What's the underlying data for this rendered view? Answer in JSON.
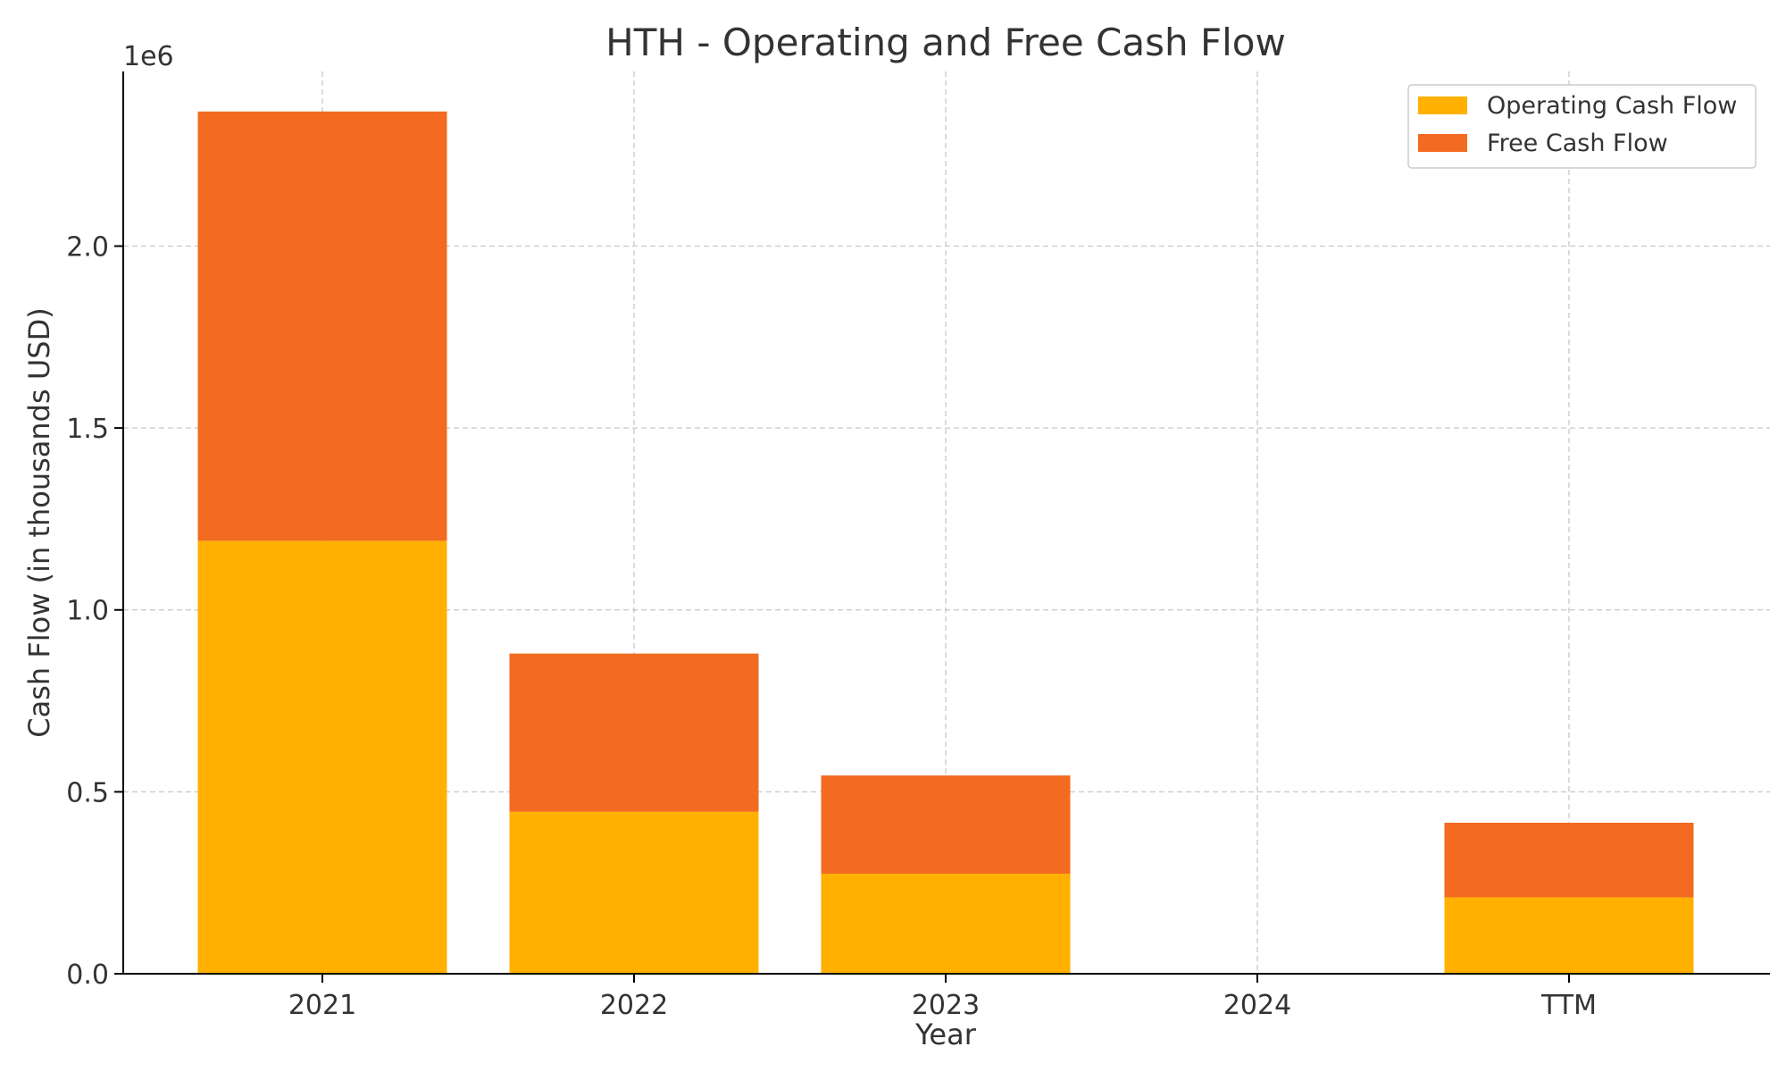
{
  "chart_data": {
    "type": "bar",
    "stacked": true,
    "title": "HTH - Operating and Free Cash Flow",
    "xlabel": "Year",
    "ylabel": "Cash Flow (in thousands USD)",
    "y_offset_label": "1e6",
    "y_scale": 1000000,
    "categories": [
      "2021",
      "2022",
      "2023",
      "2024",
      "TTM"
    ],
    "ylim": [
      0,
      2.48
    ],
    "yticks": [
      0.0,
      0.5,
      1.0,
      1.5,
      2.0
    ],
    "ytick_labels": [
      "0.0",
      "0.5",
      "1.0",
      "1.5",
      "2.0"
    ],
    "grid": true,
    "legend_position": "top-right",
    "series": [
      {
        "name": "Operating Cash Flow",
        "color": "#FFB000",
        "values": [
          1.19,
          0.445,
          0.275,
          0,
          0.21
        ]
      },
      {
        "name": "Free Cash Flow",
        "color": "#F26B21",
        "values": [
          1.18,
          0.435,
          0.27,
          0,
          0.205
        ]
      }
    ]
  }
}
